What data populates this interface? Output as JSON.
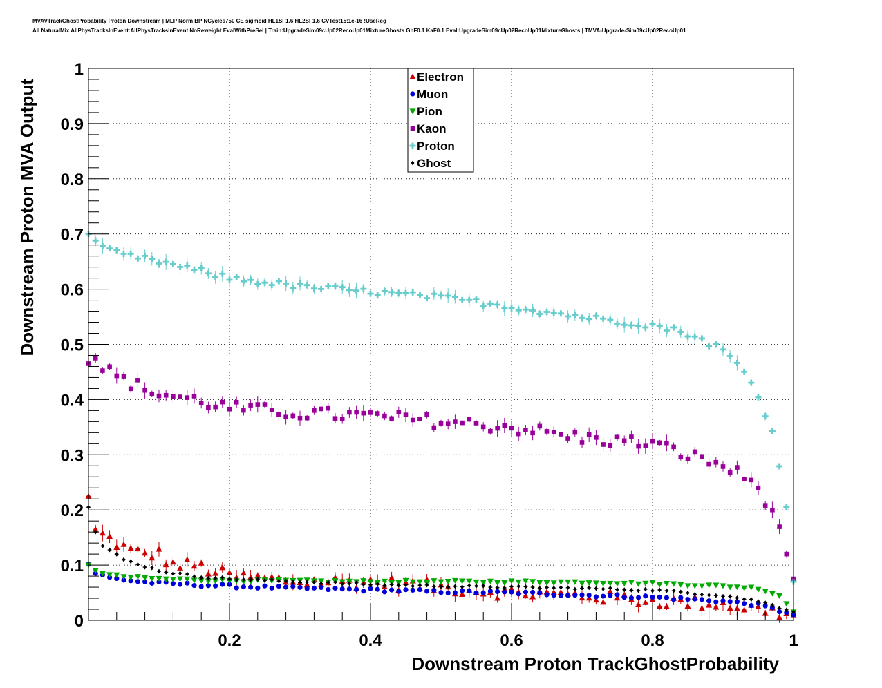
{
  "header": {
    "title_line1": "MVAVTrackGhostProbability Proton Downstream | MLP Norm BP NCycles750 CE sigmoid HL1SF1.6 HL2SF1.6 CVTest15:1e-16 !UseReg",
    "title_line2": "All NaturalMix AllPhysTracksInEvent:AllPhysTracksInEvent NoReweight EvalWithPreSel | Train:UpgradeSim09cUp02RecoUp01MixtureGhosts GhF0.1 KaF0.1 Eval:UpgradeSim09cUp02RecoUp01MixtureGhosts | TMVA-Upgrade-Sim09cUp02RecoUp01"
  },
  "chart_data": {
    "type": "scatter",
    "xlabel": "Downstream Proton TrackGhostProbability",
    "ylabel": "Downstream Proton MVA Output",
    "xlim": [
      0,
      1
    ],
    "ylim": [
      0,
      1
    ],
    "x_ticks": [
      "0.2",
      "0.4",
      "0.6",
      "0.8",
      "1"
    ],
    "y_ticks": [
      "0",
      "0.1",
      "0.2",
      "0.3",
      "0.4",
      "0.5",
      "0.6",
      "0.7",
      "0.8",
      "0.9",
      "1"
    ],
    "grid": true,
    "legend_position": "top-center",
    "series": [
      {
        "name": "Electron",
        "color": "#cc0000",
        "marker": "triangle-up",
        "anchors": [
          [
            0.0,
            0.225
          ],
          [
            0.01,
            0.165
          ],
          [
            0.02,
            0.155
          ],
          [
            0.04,
            0.14
          ],
          [
            0.06,
            0.125
          ],
          [
            0.08,
            0.12
          ],
          [
            0.1,
            0.12
          ],
          [
            0.12,
            0.1
          ],
          [
            0.15,
            0.1
          ],
          [
            0.2,
            0.08
          ],
          [
            0.3,
            0.07
          ],
          [
            0.4,
            0.07
          ],
          [
            0.5,
            0.06
          ],
          [
            0.6,
            0.05
          ],
          [
            0.7,
            0.045
          ],
          [
            0.8,
            0.035
          ],
          [
            0.9,
            0.03
          ],
          [
            1.0,
            0.01
          ]
        ],
        "noise": 0.012
      },
      {
        "name": "Muon",
        "color": "#0000dd",
        "marker": "circle",
        "anchors": [
          [
            0.0,
            0.102
          ],
          [
            0.01,
            0.085
          ],
          [
            0.03,
            0.077
          ],
          [
            0.06,
            0.072
          ],
          [
            0.1,
            0.067
          ],
          [
            0.2,
            0.062
          ],
          [
            0.3,
            0.058
          ],
          [
            0.4,
            0.055
          ],
          [
            0.5,
            0.052
          ],
          [
            0.6,
            0.05
          ],
          [
            0.7,
            0.046
          ],
          [
            0.8,
            0.042
          ],
          [
            0.9,
            0.035
          ],
          [
            0.95,
            0.028
          ],
          [
            1.0,
            0.01
          ]
        ],
        "noise": 0.003
      },
      {
        "name": "Pion",
        "color": "#00aa00",
        "marker": "triangle-down",
        "anchors": [
          [
            0.0,
            0.1
          ],
          [
            0.01,
            0.09
          ],
          [
            0.03,
            0.082
          ],
          [
            0.06,
            0.078
          ],
          [
            0.1,
            0.075
          ],
          [
            0.2,
            0.072
          ],
          [
            0.3,
            0.071
          ],
          [
            0.4,
            0.07
          ],
          [
            0.5,
            0.07
          ],
          [
            0.6,
            0.07
          ],
          [
            0.7,
            0.069
          ],
          [
            0.8,
            0.067
          ],
          [
            0.9,
            0.062
          ],
          [
            0.95,
            0.058
          ],
          [
            0.98,
            0.045
          ],
          [
            1.0,
            0.015
          ]
        ],
        "noise": 0.002
      },
      {
        "name": "Kaon",
        "color": "#990099",
        "marker": "square",
        "anchors": [
          [
            0.0,
            0.465
          ],
          [
            0.01,
            0.475
          ],
          [
            0.03,
            0.45
          ],
          [
            0.05,
            0.435
          ],
          [
            0.1,
            0.41
          ],
          [
            0.15,
            0.4
          ],
          [
            0.2,
            0.385
          ],
          [
            0.3,
            0.375
          ],
          [
            0.4,
            0.37
          ],
          [
            0.5,
            0.36
          ],
          [
            0.6,
            0.35
          ],
          [
            0.7,
            0.33
          ],
          [
            0.8,
            0.32
          ],
          [
            0.85,
            0.3
          ],
          [
            0.9,
            0.28
          ],
          [
            0.93,
            0.26
          ],
          [
            0.95,
            0.24
          ],
          [
            0.97,
            0.2
          ],
          [
            0.98,
            0.16
          ],
          [
            0.99,
            0.12
          ],
          [
            1.0,
            0.075
          ]
        ],
        "noise": 0.012
      },
      {
        "name": "Proton",
        "color": "#66cccc",
        "marker": "cross",
        "anchors": [
          [
            0.0,
            0.7
          ],
          [
            0.01,
            0.688
          ],
          [
            0.02,
            0.672
          ],
          [
            0.05,
            0.662
          ],
          [
            0.1,
            0.65
          ],
          [
            0.15,
            0.635
          ],
          [
            0.2,
            0.62
          ],
          [
            0.3,
            0.605
          ],
          [
            0.4,
            0.595
          ],
          [
            0.5,
            0.585
          ],
          [
            0.6,
            0.568
          ],
          [
            0.7,
            0.55
          ],
          [
            0.8,
            0.535
          ],
          [
            0.85,
            0.52
          ],
          [
            0.9,
            0.49
          ],
          [
            0.93,
            0.45
          ],
          [
            0.95,
            0.41
          ],
          [
            0.96,
            0.37
          ],
          [
            0.97,
            0.34
          ],
          [
            0.98,
            0.285
          ],
          [
            0.99,
            0.205
          ],
          [
            1.0,
            0.07
          ]
        ],
        "noise": 0.006
      },
      {
        "name": "Ghost",
        "color": "#000000",
        "marker": "diamond",
        "anchors": [
          [
            0.0,
            0.205
          ],
          [
            0.01,
            0.16
          ],
          [
            0.02,
            0.135
          ],
          [
            0.05,
            0.11
          ],
          [
            0.1,
            0.09
          ],
          [
            0.15,
            0.08
          ],
          [
            0.2,
            0.075
          ],
          [
            0.3,
            0.07
          ],
          [
            0.4,
            0.065
          ],
          [
            0.5,
            0.062
          ],
          [
            0.6,
            0.06
          ],
          [
            0.7,
            0.058
          ],
          [
            0.8,
            0.055
          ],
          [
            0.9,
            0.045
          ],
          [
            0.95,
            0.035
          ],
          [
            1.0,
            0.015
          ]
        ],
        "noise": 0.002
      }
    ]
  }
}
